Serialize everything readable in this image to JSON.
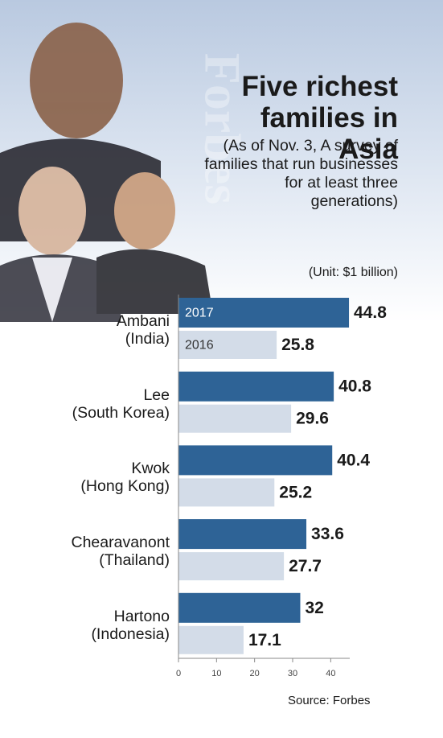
{
  "chart_data": {
    "type": "bar",
    "orientation": "horizontal",
    "title": "Five richest families in Asia",
    "subtitle": "(As of Nov. 3, A survey of families that run businesses for at least three generations)",
    "unit": "(Unit: $1 billion)",
    "source": "Source: Forbes",
    "watermark": "Forbes",
    "categories": [
      "Ambani\n(India)",
      "Lee\n(South Korea)",
      "Kwok\n(Hong Kong)",
      "Chearavanont\n(Thailand)",
      "Hartono\n(Indonesia)"
    ],
    "series": [
      {
        "name": "2017",
        "color": "#2e6396",
        "values": [
          44.8,
          40.8,
          40.4,
          33.6,
          32
        ]
      },
      {
        "name": "2016",
        "color": "#d3dce8",
        "values": [
          25.8,
          29.6,
          25.2,
          27.7,
          17.1
        ]
      }
    ],
    "xlim": [
      0,
      45
    ],
    "xticks": [
      0,
      10,
      20,
      30,
      40
    ]
  }
}
